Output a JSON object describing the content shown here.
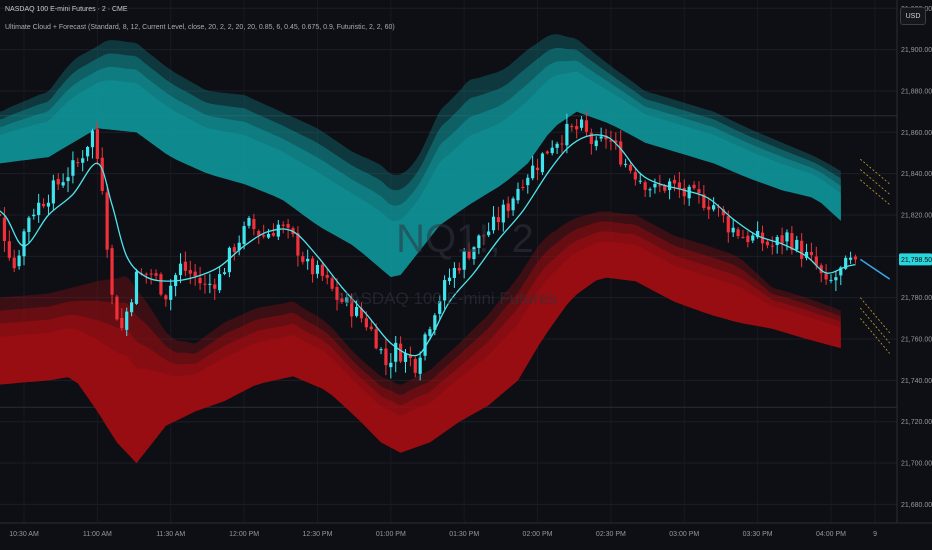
{
  "header": {
    "title": "NASDAQ 100 E-mini Futures · 2 · CME",
    "indicator": "Ultimate Cloud + Forecast (Standard, 8, 12, Current Level, close, 20, 2, 2, 20, 20, 0.85, 6, 0.45, 0.675, 0.9, Futuristic, 2, 2, 60)"
  },
  "currency_button": "USD",
  "watermark": {
    "symbol": "NQ1!, 2",
    "name": "NASDAQ 100 E-mini Futures"
  },
  "colors": {
    "background": "#0e0f14",
    "up_candle": "#3fe4ee",
    "down_candle": "#f0303a",
    "upper_cloud": "#0f8f94",
    "lower_cloud": "#9c0e12",
    "ma_line": "#4fe6ee",
    "forecast_line": "#3aa6e8",
    "forecast_dots": "#c9a227",
    "price_label_bg": "#29d6dc"
  },
  "chart_data": {
    "type": "candlestick",
    "y_ticks": [
      "21,920.00",
      "21,900.00",
      "21,880.00",
      "21,860.00",
      "21,840.00",
      "21,820.00",
      "21,800.00",
      "21,780.00",
      "21,760.00",
      "21,740.00",
      "21,720.00",
      "21,700.00",
      "21,680.00"
    ],
    "y_tick_values": [
      21920,
      21900,
      21880,
      21860,
      21840,
      21820,
      21800,
      21780,
      21760,
      21740,
      21720,
      21700,
      21680
    ],
    "ylim": [
      21671,
      21924
    ],
    "x_ticks": [
      "10:30 AM",
      "11:00 AM",
      "11:30 AM",
      "12:00 PM",
      "12:30 PM",
      "01:00 PM",
      "01:30 PM",
      "02:00 PM",
      "02:30 PM",
      "03:00 PM",
      "03:30 PM",
      "04:00 PM",
      "9"
    ],
    "x_tick_minutes": [
      630,
      660,
      690,
      720,
      750,
      780,
      810,
      840,
      870,
      900,
      930,
      960,
      978
    ],
    "current_price": 21798.5,
    "current_price_label": "21,798.50",
    "bar_interval_min": 2,
    "first_bar_minute": 612,
    "close_anchors": [
      [
        612,
        21825
      ],
      [
        620,
        21818
      ],
      [
        626,
        21795
      ],
      [
        632,
        21820
      ],
      [
        640,
        21830
      ],
      [
        646,
        21838
      ],
      [
        652,
        21845
      ],
      [
        658,
        21860
      ],
      [
        662,
        21835
      ],
      [
        666,
        21780
      ],
      [
        670,
        21765
      ],
      [
        676,
        21790
      ],
      [
        682,
        21792
      ],
      [
        688,
        21782
      ],
      [
        694,
        21795
      ],
      [
        700,
        21790
      ],
      [
        704,
        21785
      ],
      [
        710,
        21790
      ],
      [
        716,
        21805
      ],
      [
        722,
        21815
      ],
      [
        728,
        21810
      ],
      [
        734,
        21815
      ],
      [
        740,
        21808
      ],
      [
        746,
        21795
      ],
      [
        752,
        21790
      ],
      [
        758,
        21780
      ],
      [
        764,
        21775
      ],
      [
        770,
        21768
      ],
      [
        774,
        21760
      ],
      [
        778,
        21748
      ],
      [
        782,
        21755
      ],
      [
        786,
        21752
      ],
      [
        790,
        21748
      ],
      [
        794,
        21762
      ],
      [
        798,
        21775
      ],
      [
        804,
        21790
      ],
      [
        810,
        21800
      ],
      [
        816,
        21808
      ],
      [
        822,
        21815
      ],
      [
        828,
        21825
      ],
      [
        834,
        21838
      ],
      [
        840,
        21845
      ],
      [
        846,
        21855
      ],
      [
        852,
        21860
      ],
      [
        858,
        21862
      ],
      [
        864,
        21852
      ],
      [
        868,
        21858
      ],
      [
        872,
        21852
      ],
      [
        876,
        21845
      ],
      [
        882,
        21838
      ],
      [
        888,
        21832
      ],
      [
        894,
        21835
      ],
      [
        900,
        21830
      ],
      [
        906,
        21828
      ],
      [
        912,
        21825
      ],
      [
        918,
        21815
      ],
      [
        924,
        21810
      ],
      [
        930,
        21808
      ],
      [
        936,
        21805
      ],
      [
        942,
        21810
      ],
      [
        948,
        21802
      ],
      [
        954,
        21795
      ],
      [
        958,
        21785
      ],
      [
        962,
        21790
      ],
      [
        966,
        21795
      ],
      [
        970,
        21798.5
      ]
    ],
    "ma_anchors": [
      [
        612,
        21828
      ],
      [
        622,
        21820
      ],
      [
        630,
        21805
      ],
      [
        640,
        21820
      ],
      [
        650,
        21830
      ],
      [
        660,
        21845
      ],
      [
        666,
        21825
      ],
      [
        672,
        21800
      ],
      [
        680,
        21790
      ],
      [
        690,
        21788
      ],
      [
        700,
        21790
      ],
      [
        710,
        21795
      ],
      [
        720,
        21805
      ],
      [
        730,
        21812
      ],
      [
        740,
        21812
      ],
      [
        750,
        21800
      ],
      [
        760,
        21785
      ],
      [
        770,
        21772
      ],
      [
        780,
        21758
      ],
      [
        790,
        21752
      ],
      [
        796,
        21760
      ],
      [
        804,
        21778
      ],
      [
        814,
        21792
      ],
      [
        824,
        21808
      ],
      [
        834,
        21822
      ],
      [
        844,
        21840
      ],
      [
        852,
        21852
      ],
      [
        860,
        21858
      ],
      [
        868,
        21858
      ],
      [
        874,
        21852
      ],
      [
        882,
        21840
      ],
      [
        890,
        21835
      ],
      [
        900,
        21832
      ],
      [
        910,
        21828
      ],
      [
        920,
        21818
      ],
      [
        930,
        21810
      ],
      [
        940,
        21806
      ],
      [
        950,
        21800
      ],
      [
        958,
        21792
      ],
      [
        966,
        21795
      ],
      [
        970,
        21796
      ]
    ],
    "upper_cloud_top": [
      [
        600,
        21880
      ],
      [
        620,
        21870
      ],
      [
        640,
        21880
      ],
      [
        650,
        21895
      ],
      [
        665,
        21905
      ],
      [
        676,
        21903
      ],
      [
        690,
        21890
      ],
      [
        705,
        21880
      ],
      [
        720,
        21878
      ],
      [
        735,
        21870
      ],
      [
        750,
        21862
      ],
      [
        765,
        21850
      ],
      [
        775,
        21845
      ],
      [
        782,
        21838
      ],
      [
        790,
        21845
      ],
      [
        800,
        21870
      ],
      [
        812,
        21885
      ],
      [
        826,
        21890
      ],
      [
        836,
        21900
      ],
      [
        846,
        21908
      ],
      [
        856,
        21905
      ],
      [
        870,
        21892
      ],
      [
        884,
        21880
      ],
      [
        898,
        21875
      ],
      [
        912,
        21870
      ],
      [
        926,
        21862
      ],
      [
        940,
        21855
      ],
      [
        954,
        21848
      ],
      [
        966,
        21840
      ]
    ],
    "upper_cloud_bottom": [
      [
        600,
        21850
      ],
      [
        620,
        21845
      ],
      [
        640,
        21848
      ],
      [
        660,
        21862
      ],
      [
        676,
        21860
      ],
      [
        690,
        21848
      ],
      [
        705,
        21840
      ],
      [
        720,
        21835
      ],
      [
        735,
        21828
      ],
      [
        750,
        21815
      ],
      [
        765,
        21805
      ],
      [
        775,
        21795
      ],
      [
        782,
        21788
      ],
      [
        790,
        21800
      ],
      [
        800,
        21815
      ],
      [
        812,
        21825
      ],
      [
        826,
        21835
      ],
      [
        836,
        21845
      ],
      [
        846,
        21862
      ],
      [
        856,
        21870
      ],
      [
        870,
        21864
      ],
      [
        884,
        21855
      ],
      [
        898,
        21850
      ],
      [
        912,
        21845
      ],
      [
        926,
        21838
      ],
      [
        940,
        21832
      ],
      [
        954,
        21828
      ],
      [
        966,
        21815
      ]
    ],
    "lower_cloud_top": [
      [
        600,
        21777
      ],
      [
        620,
        21780
      ],
      [
        640,
        21782
      ],
      [
        660,
        21788
      ],
      [
        672,
        21790
      ],
      [
        680,
        21778
      ],
      [
        690,
        21760
      ],
      [
        700,
        21758
      ],
      [
        712,
        21768
      ],
      [
        725,
        21775
      ],
      [
        740,
        21778
      ],
      [
        754,
        21768
      ],
      [
        766,
        21752
      ],
      [
        776,
        21742
      ],
      [
        784,
        21738
      ],
      [
        796,
        21745
      ],
      [
        808,
        21758
      ],
      [
        820,
        21772
      ],
      [
        832,
        21790
      ],
      [
        842,
        21808
      ],
      [
        854,
        21818
      ],
      [
        866,
        21822
      ],
      [
        880,
        21820
      ],
      [
        896,
        21810
      ],
      [
        910,
        21805
      ],
      [
        922,
        21800
      ],
      [
        936,
        21785
      ],
      [
        950,
        21780
      ],
      [
        966,
        21773
      ]
    ],
    "lower_cloud_bottom": [
      [
        600,
        21745
      ],
      [
        620,
        21738
      ],
      [
        640,
        21740
      ],
      [
        650,
        21742
      ],
      [
        660,
        21725
      ],
      [
        668,
        21710
      ],
      [
        676,
        21700
      ],
      [
        688,
        21718
      ],
      [
        700,
        21725
      ],
      [
        712,
        21730
      ],
      [
        725,
        21738
      ],
      [
        740,
        21742
      ],
      [
        754,
        21735
      ],
      [
        766,
        21722
      ],
      [
        776,
        21710
      ],
      [
        784,
        21705
      ],
      [
        796,
        21710
      ],
      [
        808,
        21720
      ],
      [
        820,
        21728
      ],
      [
        832,
        21740
      ],
      [
        842,
        21760
      ],
      [
        854,
        21780
      ],
      [
        866,
        21790
      ],
      [
        880,
        21788
      ],
      [
        896,
        21778
      ],
      [
        910,
        21772
      ],
      [
        922,
        21768
      ],
      [
        936,
        21765
      ],
      [
        950,
        21760
      ],
      [
        966,
        21755
      ]
    ],
    "forecast_anchors": [
      [
        972,
        21798.5
      ],
      [
        984,
        21789
      ]
    ],
    "forecast_band_upper": [
      21842,
      21830
    ],
    "forecast_band_lower": [
      21775,
      21758
    ]
  }
}
